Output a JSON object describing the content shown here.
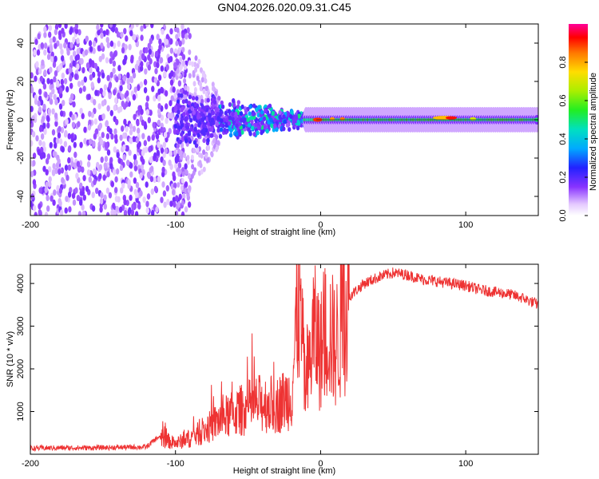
{
  "title": "GN04.2026.020.09.31.C45",
  "chart_data": [
    {
      "type": "heatmap",
      "xlabel": "Height of straight line (km)",
      "ylabel": "Frequency (Hz)",
      "xlim": [
        -200,
        150
      ],
      "ylim": [
        -50,
        50
      ],
      "xticks": [
        -200,
        -100,
        0,
        100
      ],
      "yticks": [
        -40,
        -20,
        0,
        20,
        40
      ],
      "colorbar": {
        "label": "Normalized spectral amplitude",
        "range": [
          0,
          1
        ],
        "ticks": [
          "0.0",
          "0.2",
          "0.4",
          "0.6",
          "0.8"
        ]
      },
      "regions": [
        {
          "x_range": [
            -200,
            -100
          ],
          "freq_range": [
            -50,
            50
          ],
          "amplitude": "low, scattered noise"
        },
        {
          "x_range": [
            -100,
            -10
          ],
          "freq_range": [
            -15,
            15
          ],
          "amplitude": "medium, converging"
        },
        {
          "x_range": [
            -10,
            150
          ],
          "freq_range": [
            -3,
            3
          ],
          "amplitude": "high, narrow band near 0 Hz"
        }
      ]
    },
    {
      "type": "line",
      "xlabel": "Height of straight line (km)",
      "ylabel": "SNR (10 * v/v)",
      "xlim": [
        -200,
        150
      ],
      "ylim": [
        0,
        4450
      ],
      "xticks": [
        -200,
        -100,
        0,
        100
      ],
      "yticks": [
        1000,
        2000,
        3000,
        4000
      ],
      "color": "#ee3333",
      "series": [
        {
          "name": "SNR",
          "x": [
            -200,
            -180,
            -160,
            -140,
            -120,
            -112,
            -100,
            -90,
            -80,
            -70,
            -60,
            -50,
            -40,
            -30,
            -20,
            -15,
            -10,
            -5,
            0,
            5,
            10,
            15,
            20,
            30,
            40,
            50,
            60,
            70,
            80,
            90,
            100,
            110,
            120,
            130,
            140,
            150
          ],
          "values": [
            140,
            150,
            150,
            160,
            170,
            400,
            250,
            380,
            550,
            800,
            950,
            1100,
            1200,
            1150,
            1400,
            3800,
            1300,
            2900,
            2400,
            3000,
            2500,
            3100,
            3700,
            4000,
            4150,
            4250,
            4200,
            4100,
            4050,
            4000,
            3950,
            3850,
            3800,
            3750,
            3650,
            3500
          ]
        }
      ]
    }
  ]
}
